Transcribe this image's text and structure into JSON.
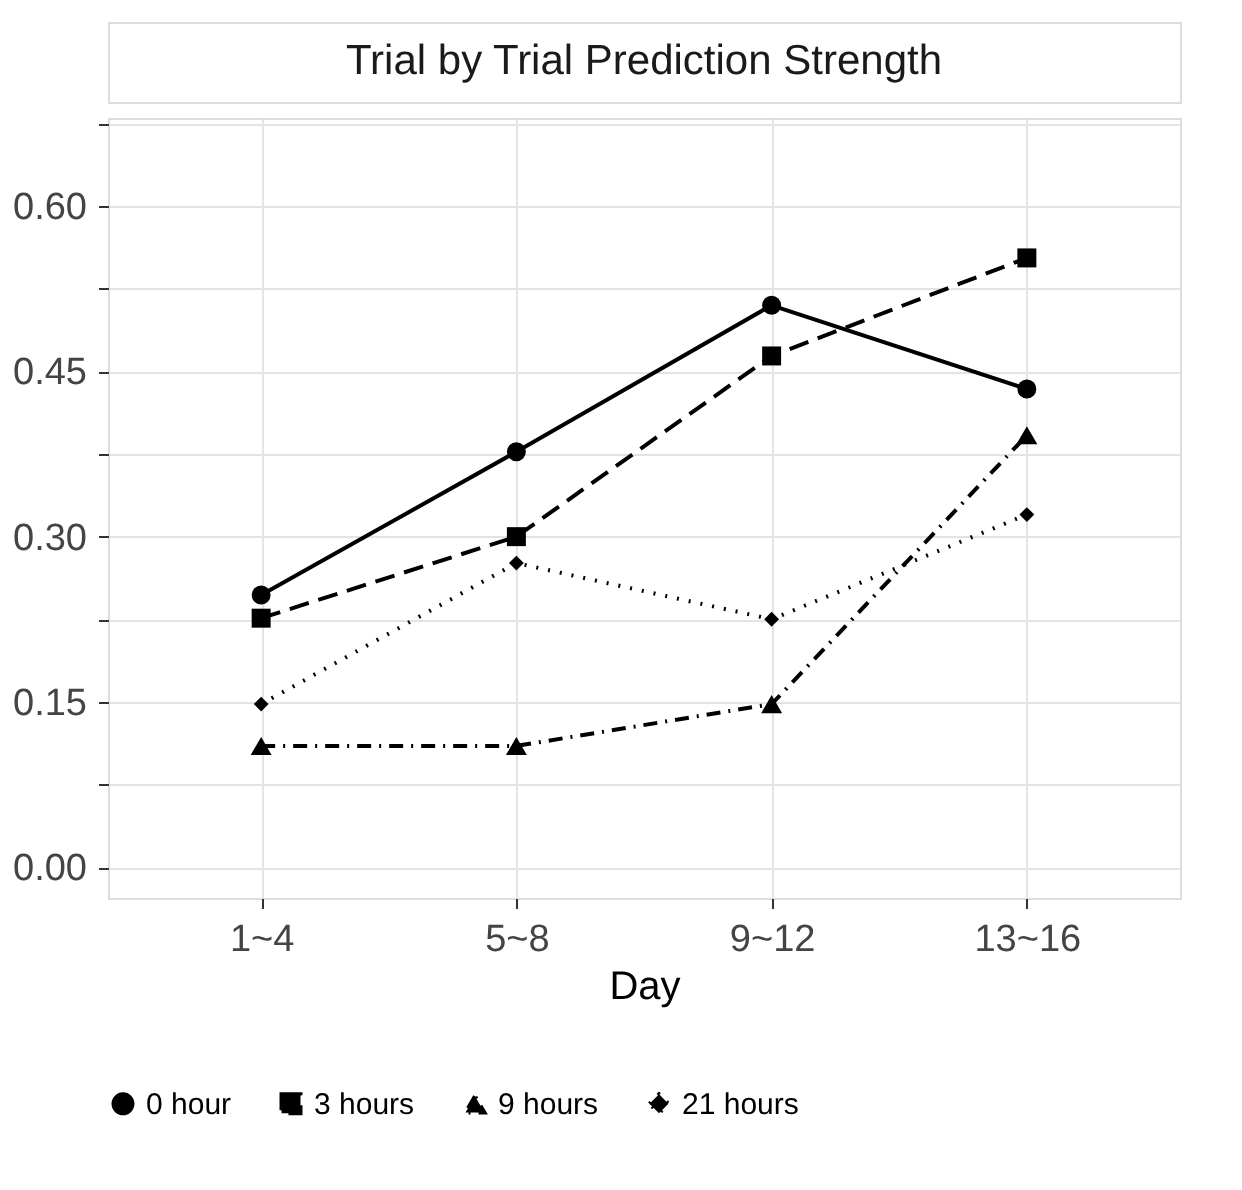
{
  "chart_data": {
    "type": "line",
    "title": "Trial by Trial Prediction Strength",
    "xlabel": "Day",
    "categories": [
      "1~4",
      "5~8",
      "9~12",
      "13~16"
    ],
    "series": [
      {
        "name": "0 hour",
        "color": "#000000",
        "marker": "circle",
        "line_style": "solid",
        "values": [
          0.247,
          0.377,
          0.51,
          0.434
        ]
      },
      {
        "name": "3 hours",
        "color": "#000000",
        "marker": "square",
        "line_style": "dashed",
        "values": [
          0.226,
          0.3,
          0.464,
          0.553
        ]
      },
      {
        "name": "9 hours",
        "color": "#000000",
        "marker": "triangle",
        "line_style": "dashdot",
        "values": [
          0.11,
          0.11,
          0.148,
          0.392
        ]
      },
      {
        "name": "21 hours",
        "color": "#000000",
        "marker": "diamond",
        "line_style": "dotted",
        "values": [
          0.148,
          0.276,
          0.225,
          0.32
        ]
      }
    ],
    "ylim": [
      -0.028,
      0.68
    ],
    "yticks": [
      {
        "value": 0,
        "label": "0.00"
      },
      {
        "value": 0.075,
        "label": null
      },
      0.15,
      {
        "value": 0.225,
        "label": null
      },
      {
        "value": 0.3,
        "label": "0.30"
      },
      {
        "value": 0.375,
        "label": null
      },
      0.45,
      {
        "value": 0.525,
        "label": null
      },
      {
        "value": 0.6,
        "label": "0.60"
      },
      {
        "value": 0.675,
        "label": null
      }
    ],
    "grid": true,
    "legend": "bottom"
  }
}
